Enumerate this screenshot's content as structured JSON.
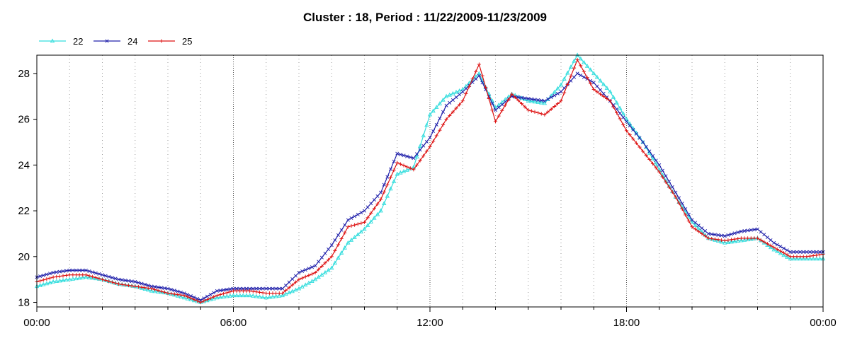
{
  "chart_data": {
    "type": "line",
    "title": "Cluster : 18, Period : 11/22/2009-11/23/2009",
    "xlabel": "",
    "ylabel": "",
    "x_unit": "hours",
    "xlim": [
      0,
      24
    ],
    "ylim": [
      17.8,
      28.8
    ],
    "x_tick_labels": [
      "00:00",
      "06:00",
      "12:00",
      "18:00",
      "00:00"
    ],
    "x_major_ticks": [
      0,
      6,
      12,
      18,
      24
    ],
    "x_minor_step": 1,
    "y_ticks": [
      18,
      20,
      22,
      24,
      26,
      28
    ],
    "grid": "dotted vertical",
    "legend_position": "top-left",
    "x": [
      0,
      0.5,
      1,
      1.5,
      2,
      2.5,
      3,
      3.5,
      4,
      4.5,
      5,
      5.5,
      6,
      6.5,
      7,
      7.5,
      8,
      8.5,
      9,
      9.5,
      10,
      10.5,
      11,
      11.5,
      12,
      12.5,
      13,
      13.5,
      14,
      14.5,
      15,
      15.5,
      16,
      16.5,
      17,
      17.5,
      18,
      18.5,
      19,
      19.5,
      20,
      20.5,
      21,
      21.5,
      22,
      22.5,
      23,
      23.5,
      24
    ],
    "series": [
      {
        "name": "22",
        "color": "#33dddd",
        "marker": "triangle",
        "values": [
          18.7,
          18.9,
          19.0,
          19.1,
          19.0,
          18.8,
          18.7,
          18.5,
          18.4,
          18.2,
          18.0,
          18.2,
          18.3,
          18.3,
          18.2,
          18.3,
          18.6,
          19.0,
          19.5,
          20.6,
          21.2,
          22.0,
          23.6,
          23.9,
          26.2,
          27.0,
          27.3,
          28.0,
          26.5,
          27.1,
          26.8,
          26.7,
          27.5,
          28.8,
          28.0,
          27.2,
          26.0,
          25.0,
          23.8,
          22.6,
          21.5,
          20.8,
          20.6,
          20.7,
          20.8,
          20.3,
          19.9,
          19.9,
          19.9
        ]
      },
      {
        "name": "24",
        "color": "#2020aa",
        "marker": "x",
        "values": [
          19.1,
          19.3,
          19.4,
          19.4,
          19.2,
          19.0,
          18.9,
          18.7,
          18.6,
          18.4,
          18.1,
          18.5,
          18.6,
          18.6,
          18.6,
          18.6,
          19.3,
          19.6,
          20.5,
          21.6,
          22.0,
          22.8,
          24.5,
          24.3,
          25.2,
          26.6,
          27.2,
          27.9,
          26.4,
          27.0,
          26.9,
          26.8,
          27.2,
          28.0,
          27.6,
          26.8,
          25.9,
          25.0,
          24.0,
          22.8,
          21.6,
          21.0,
          20.9,
          21.1,
          21.2,
          20.6,
          20.2,
          20.2,
          20.2
        ]
      },
      {
        "name": "25",
        "color": "#dd1111",
        "marker": "plus",
        "values": [
          18.9,
          19.1,
          19.2,
          19.2,
          19.0,
          18.8,
          18.7,
          18.6,
          18.4,
          18.3,
          18.0,
          18.3,
          18.5,
          18.5,
          18.4,
          18.4,
          19.0,
          19.3,
          20.0,
          21.3,
          21.5,
          22.5,
          24.1,
          23.8,
          24.8,
          26.0,
          26.8,
          28.4,
          25.9,
          27.1,
          26.4,
          26.2,
          26.8,
          28.6,
          27.3,
          26.8,
          25.5,
          24.6,
          23.7,
          22.6,
          21.3,
          20.8,
          20.7,
          20.8,
          20.8,
          20.4,
          20.0,
          20.0,
          20.1
        ]
      }
    ]
  }
}
